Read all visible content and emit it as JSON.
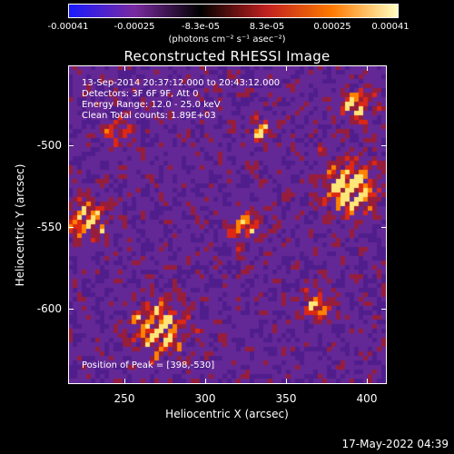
{
  "colorbar": {
    "ticks": [
      "-0.00041",
      "-0.00025",
      "-8.3e-05",
      "8.3e-05",
      "0.00025",
      "0.00041"
    ],
    "units": "(photons cm⁻² s⁻¹ asec⁻²)",
    "colors": [
      "#1a1aff",
      "#7a2aa0",
      "#000000",
      "#c02020",
      "#ff7a00",
      "#ffffc0"
    ]
  },
  "title": "Reconstructed RHESSI Image",
  "overlay": {
    "time_range": "13-Sep-2014 20:37:12.000 to 20:43:12.000",
    "detectors": "Detectors: 3F 6F 9F, Att 0",
    "energy": "Energy Range: 12.0 - 25.0 keV",
    "clean": "Clean     Total counts: 1.89E+03",
    "peak": "Position of Peak = [398,-530]"
  },
  "axes": {
    "xlabel": "Heliocentric X (arcsec)",
    "ylabel": "Heliocentric Y (arcsec)",
    "xticks": [
      "250",
      "300",
      "350",
      "400"
    ],
    "yticks": [
      "-500",
      "-550",
      "-600"
    ]
  },
  "timestamp": "17-May-2022 04:39"
}
